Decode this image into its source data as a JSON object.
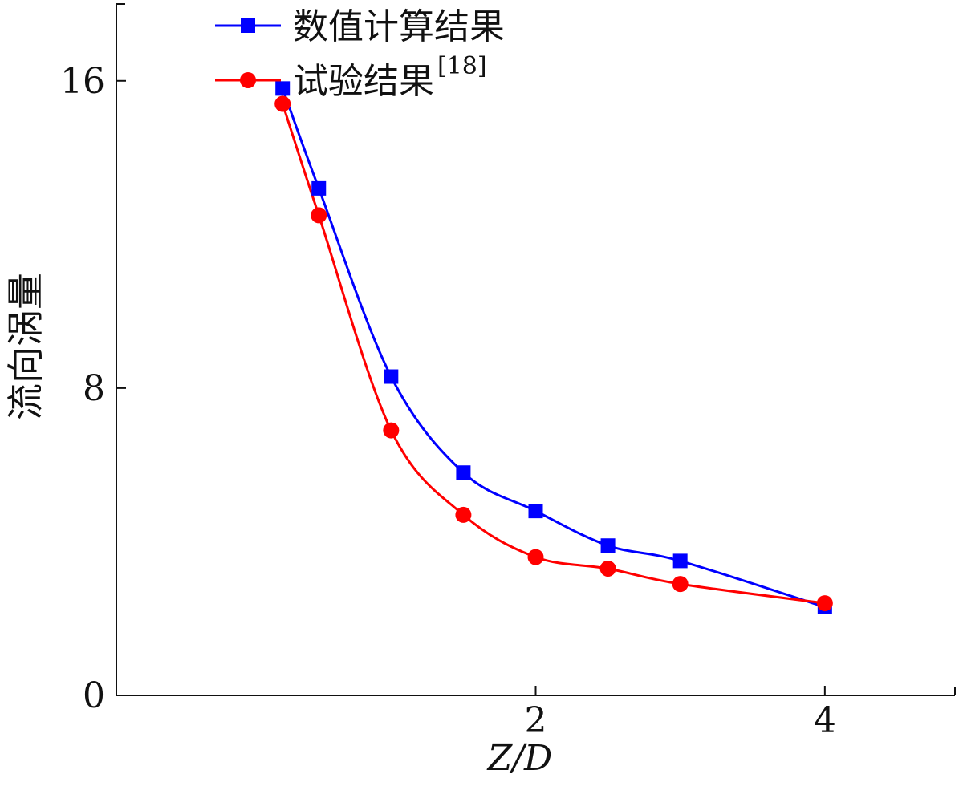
{
  "chart_data": {
    "type": "line",
    "xlabel": "Z/D",
    "ylabel": "流向涡量",
    "xlim": [
      -0.9,
      4.9
    ],
    "ylim": [
      0,
      18
    ],
    "x_ticks": [
      {
        "value": 2,
        "label": "2"
      },
      {
        "value": 4,
        "label": "4"
      }
    ],
    "y_ticks": [
      {
        "value": 0,
        "label": "0"
      },
      {
        "value": 8,
        "label": "8"
      },
      {
        "value": 16,
        "label": "16"
      }
    ],
    "grid": false,
    "legend_position": "top-left",
    "series": [
      {
        "name": "数值计算结果",
        "name_sup": "",
        "color": "#0000ff",
        "marker": "square",
        "x": [
          0.25,
          0.5,
          1.0,
          1.5,
          2.0,
          2.5,
          3.0,
          4.0
        ],
        "y": [
          15.8,
          13.2,
          8.3,
          5.8,
          4.8,
          3.9,
          3.5,
          2.3
        ]
      },
      {
        "name": "试验结果",
        "name_sup": "[18]",
        "color": "#ff0000",
        "marker": "circle",
        "x": [
          0.25,
          0.5,
          1.0,
          1.5,
          2.0,
          2.5,
          3.0,
          4.0
        ],
        "y": [
          15.4,
          12.5,
          6.9,
          4.7,
          3.6,
          3.3,
          2.9,
          2.4
        ]
      }
    ]
  }
}
